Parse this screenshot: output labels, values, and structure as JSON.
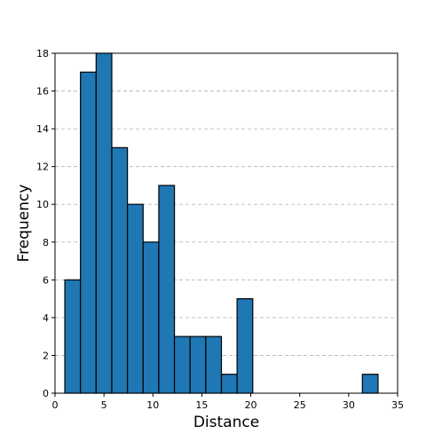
{
  "chart_data": {
    "type": "histogram",
    "title": "",
    "xlabel": "Distance",
    "ylabel": "Frequency",
    "xlim": [
      0,
      35
    ],
    "ylim": [
      0,
      18
    ],
    "xticks": [
      "0",
      "5",
      "10",
      "15",
      "20",
      "25",
      "30",
      "35"
    ],
    "yticks": [
      "0",
      "2",
      "4",
      "6",
      "8",
      "10",
      "12",
      "14",
      "16",
      "18"
    ],
    "grid": "y-dashed",
    "bar_color": "#1f77b4",
    "bins": [
      {
        "x0": 1.0,
        "x1": 2.6,
        "count": 6
      },
      {
        "x0": 2.6,
        "x1": 4.2,
        "count": 17
      },
      {
        "x0": 4.2,
        "x1": 5.8,
        "count": 18
      },
      {
        "x0": 5.8,
        "x1": 7.4,
        "count": 13
      },
      {
        "x0": 7.4,
        "x1": 9.0,
        "count": 10
      },
      {
        "x0": 9.0,
        "x1": 10.6,
        "count": 8
      },
      {
        "x0": 10.6,
        "x1": 12.2,
        "count": 11
      },
      {
        "x0": 12.2,
        "x1": 13.8,
        "count": 3
      },
      {
        "x0": 13.8,
        "x1": 15.4,
        "count": 3
      },
      {
        "x0": 15.4,
        "x1": 17.0,
        "count": 3
      },
      {
        "x0": 17.0,
        "x1": 18.6,
        "count": 1
      },
      {
        "x0": 18.6,
        "x1": 20.2,
        "count": 5
      },
      {
        "x0": 31.4,
        "x1": 33.0,
        "count": 1
      }
    ]
  }
}
